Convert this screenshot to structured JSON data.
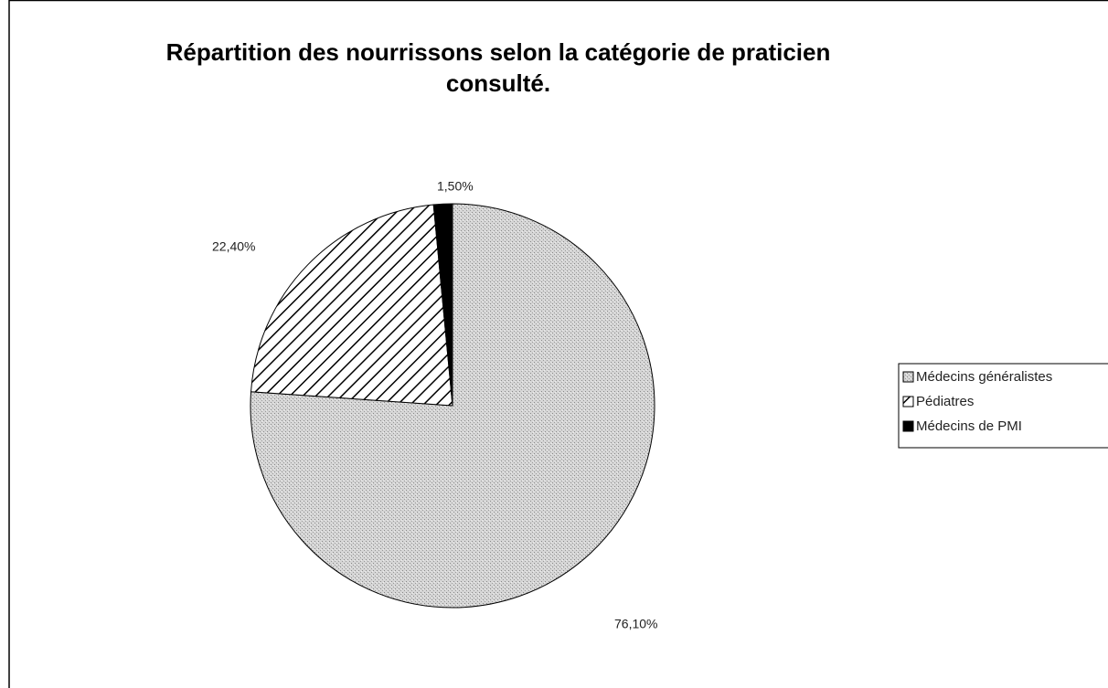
{
  "chart_data": {
    "type": "pie",
    "title": "Répartition des nourrissons selon la catégorie de praticien consulté.",
    "categories": [
      "Médecins généralistes",
      "Pédiatres",
      "Médecins de PMI"
    ],
    "values": [
      76.1,
      22.4,
      1.5
    ],
    "value_labels": [
      "76,10%",
      "22,40%",
      "1,50%"
    ],
    "legend": "right"
  }
}
